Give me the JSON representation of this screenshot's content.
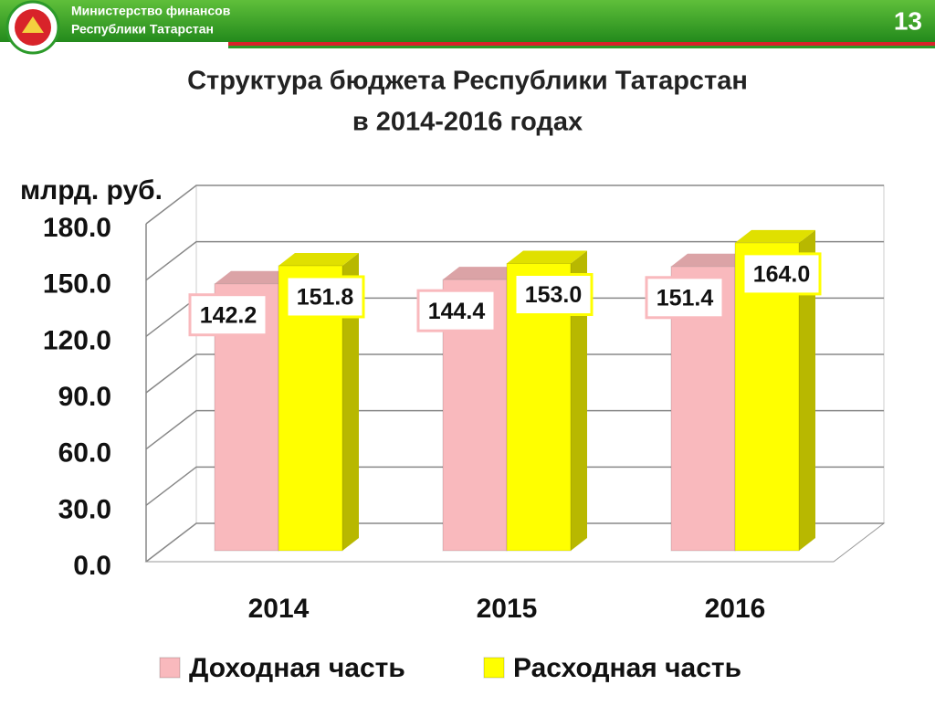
{
  "header": {
    "org_line1": "Министерство финансов",
    "org_line2": "Республики Татарстан",
    "page_number": "13"
  },
  "chart_data": {
    "type": "bar3d",
    "title": "Структура бюджета Республики Татарстан",
    "subtitle": "в 2014-2016 годах",
    "y_label": "млрд. руб.",
    "categories": [
      "2014",
      "2015",
      "2016"
    ],
    "series": [
      {
        "name": "Доходная часть",
        "color": "#f9b9bd",
        "values": [
          142.2,
          144.4,
          151.4
        ],
        "value_labels": [
          "142.2",
          "144.4",
          "151.4"
        ]
      },
      {
        "name": "Расходная часть",
        "color": "#ffff00",
        "values": [
          151.8,
          153.0,
          164.0
        ],
        "value_labels": [
          "151.8",
          "153.0",
          "164.0"
        ]
      }
    ],
    "ylim": [
      0,
      180
    ],
    "yticks": [
      {
        "value": 0,
        "label": "0.0"
      },
      {
        "value": 30,
        "label": "30.0"
      },
      {
        "value": 60,
        "label": "60.0"
      },
      {
        "value": 90,
        "label": "90.0"
      },
      {
        "value": 120,
        "label": "120.0"
      },
      {
        "value": 150,
        "label": "150.0"
      },
      {
        "value": 180,
        "label": "180.0"
      }
    ],
    "grid": true
  }
}
